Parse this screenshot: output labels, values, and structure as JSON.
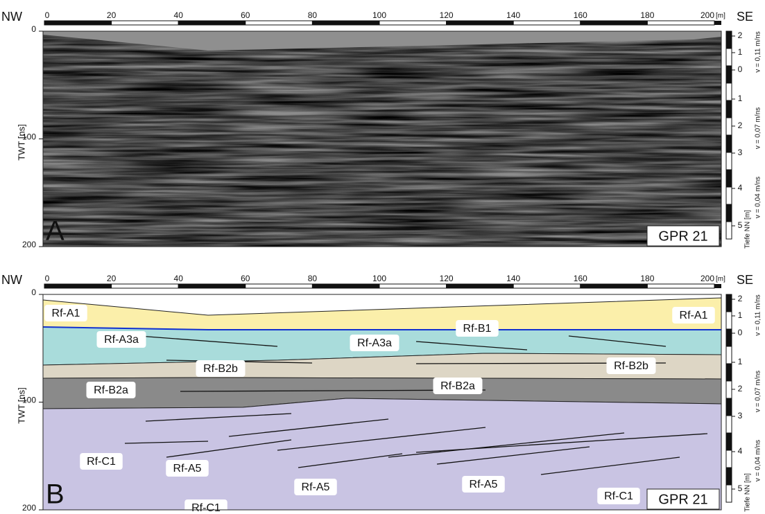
{
  "panels": [
    {
      "letter": "A",
      "profile": "GPR 21",
      "left_end": "NW",
      "right_end": "SE",
      "x_unit": "[m]",
      "y_label": "TWT [ns]",
      "depth_label": "Tiefe NN [m]",
      "x_ticks": [
        0,
        20,
        40,
        60,
        80,
        100,
        120,
        140,
        160,
        180,
        200
      ],
      "y_ticks": [
        0,
        100,
        200
      ],
      "depth_ticks": [
        2,
        1,
        0,
        1,
        2,
        3,
        4,
        5
      ],
      "velocities": [
        "v = 0,11 m/ns",
        "v = 0,07 m/ns",
        "v = 0,04 m/ns"
      ]
    },
    {
      "letter": "B",
      "profile": "GPR 21",
      "left_end": "NW",
      "right_end": "SE",
      "x_unit": "[m]",
      "y_label": "TWT [ns]",
      "depth_label": "Tiefe NN [m]",
      "x_ticks": [
        0,
        20,
        40,
        60,
        80,
        100,
        120,
        140,
        160,
        180,
        200
      ],
      "y_ticks": [
        0,
        100,
        200
      ],
      "depth_ticks": [
        2,
        1,
        0,
        1,
        2,
        3,
        4,
        5
      ],
      "velocities": [
        "v = 0,11 m/ns",
        "v = 0,07 m/ns",
        "v = 0,04 m/ns"
      ],
      "units": [
        "Rf-A1",
        "Rf-A3a",
        "Rf-A3a",
        "Rf-B1",
        "Rf-A1",
        "Rf-B2b",
        "Rf-B2b",
        "Rf-B2a",
        "Rf-B2a",
        "Rf-C1",
        "Rf-A5",
        "Rf-A5",
        "Rf-A5",
        "Rf-C1",
        "Rf-C1"
      ]
    }
  ]
}
